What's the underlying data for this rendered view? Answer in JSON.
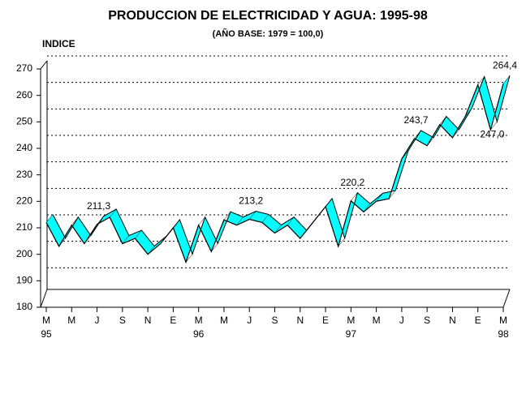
{
  "chart_data": {
    "type": "line",
    "title": "PRODUCCION DE ELECTRICIDAD Y AGUA: 1995-98",
    "subtitle": "(AÑO BASE: 1979 = 100,0)",
    "y_label": "INDICE",
    "categories": [
      "M",
      null,
      "M",
      null,
      "J",
      null,
      "S",
      null,
      "N",
      null,
      "E",
      null,
      "M",
      null,
      "M",
      null,
      "J",
      null,
      "S",
      null,
      "N",
      null,
      "E",
      null,
      "M",
      null,
      "M",
      null,
      "J",
      null,
      "S",
      null,
      "N",
      null,
      "E",
      null,
      "M"
    ],
    "years": [
      "95",
      null,
      null,
      null,
      null,
      null,
      null,
      null,
      null,
      null,
      null,
      null,
      "96",
      null,
      null,
      null,
      null,
      null,
      null,
      null,
      null,
      null,
      null,
      null,
      "97",
      null,
      null,
      null,
      null,
      null,
      null,
      null,
      null,
      null,
      null,
      null,
      "98"
    ],
    "values": [
      212,
      203,
      211,
      204,
      211.3,
      214,
      204,
      206,
      200,
      204,
      210,
      197,
      211,
      201,
      213,
      211,
      213.2,
      212,
      208,
      211,
      206,
      212,
      218,
      203,
      220.2,
      216,
      220,
      221,
      236,
      243.7,
      241,
      249,
      244,
      252,
      264,
      247.0,
      264.4
    ],
    "value_labels": [
      null,
      null,
      null,
      null,
      "211,3",
      null,
      null,
      null,
      null,
      null,
      null,
      null,
      null,
      null,
      null,
      null,
      "213,2",
      null,
      null,
      null,
      null,
      null,
      null,
      null,
      "220,2",
      null,
      null,
      null,
      null,
      "243,7",
      null,
      null,
      null,
      null,
      null,
      "247,0",
      "264,4"
    ],
    "color": "#00ffff",
    "ylim": [
      180,
      270
    ],
    "yticks": [
      180,
      190,
      200,
      210,
      220,
      230,
      240,
      250,
      260,
      270
    ],
    "grid": true
  }
}
